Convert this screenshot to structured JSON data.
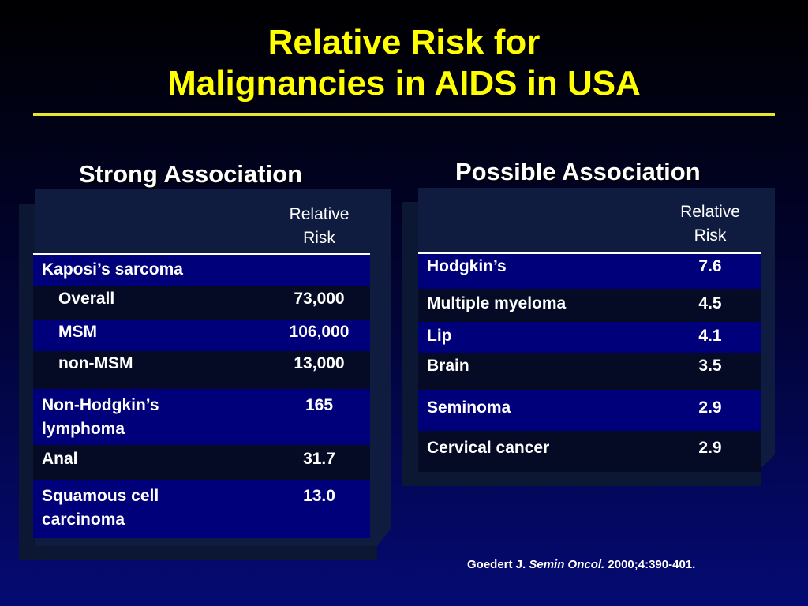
{
  "title": {
    "line1": "Relative Risk for",
    "line2": "Malignancies in AIDS in USA"
  },
  "left": {
    "heading": "Strong Association",
    "header_value": "Relative Risk",
    "rows": [
      {
        "label": "Kaposi’s sarcoma",
        "value": "",
        "indent": false
      },
      {
        "label": "Overall",
        "value": "73,000",
        "indent": true
      },
      {
        "label": "MSM",
        "value": "106,000",
        "indent": true
      },
      {
        "label": "non-MSM",
        "value": "13,000",
        "indent": true
      },
      {
        "label": "Non-Hodgkin’s lymphoma",
        "value": "165",
        "indent": false
      },
      {
        "label": "Anal",
        "value": "31.7",
        "indent": false
      },
      {
        "label": "Squamous cell carcinoma",
        "value": "13.0",
        "indent": false
      }
    ]
  },
  "right": {
    "heading": "Possible Association",
    "header_value": "Relative Risk",
    "rows": [
      {
        "label": "Hodgkin’s",
        "value": "7.6"
      },
      {
        "label": "Multiple myeloma",
        "value": "4.5"
      },
      {
        "label": "Lip",
        "value": "4.1"
      },
      {
        "label": "Brain",
        "value": "3.5"
      },
      {
        "label": "Seminoma",
        "value": "2.9"
      },
      {
        "label": "Cervical cancer",
        "value": "2.9"
      }
    ]
  },
  "citation": {
    "author": "Goedert J.",
    "journal": "Semin Oncol.",
    "ref": "2000;4:390-401."
  },
  "colors": {
    "title": "#ffff00",
    "row_blue": "#00007a",
    "row_dark": "#050a25",
    "panel": "#0c1733"
  }
}
